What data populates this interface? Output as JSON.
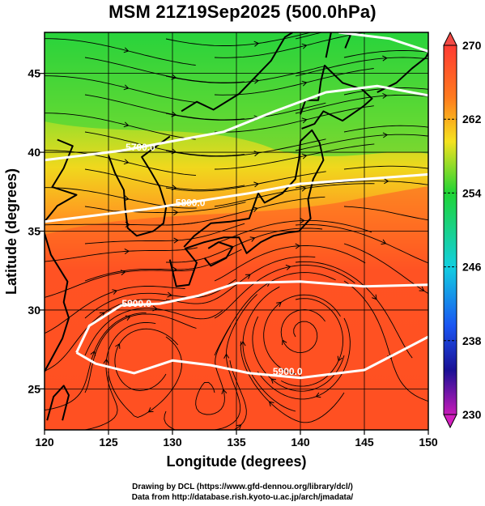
{
  "title": "MSM 21Z19Sep2025 (500.0hPa)",
  "map": {
    "x_axis": {
      "label": "Longitude (degrees)",
      "range": [
        120,
        150
      ],
      "ticks": [
        120,
        125,
        130,
        135,
        140,
        145,
        150
      ]
    },
    "y_axis": {
      "label": "Latitude  (degrees)",
      "range": [
        22.4,
        47.6
      ],
      "ticks": [
        25,
        30,
        35,
        40,
        45
      ]
    },
    "contours": [
      {
        "label": "5700.0",
        "lon": 127.5,
        "lat": 40.1
      },
      {
        "label": "5800.0",
        "lon": 131.4,
        "lat": 36.6
      },
      {
        "label": "5900.0",
        "lon": 127.2,
        "lat": 30.2
      },
      {
        "label": "5900.0",
        "lon": 139.0,
        "lat": 25.9
      }
    ],
    "colorbar": {
      "ticks": [
        "270",
        "262",
        "254",
        "246",
        "238",
        "230"
      ],
      "colors": [
        "#ff3b33",
        "#ff7a1e",
        "#f5e21f",
        "#20d435",
        "#12cfe0",
        "#1a55f2",
        "#1a1095",
        "#c61ab8"
      ]
    },
    "field_colors": {
      "north": "#1fd43a",
      "mid": "#e2ea25",
      "south": "#ff4f22"
    }
  },
  "footer": {
    "line1": "Drawing by DCL (https://www.gfd-dennou.org/library/dcl/)",
    "line2": "Data from http://database.rish.kyoto-u.ac.jp/arch/jmadata/"
  }
}
